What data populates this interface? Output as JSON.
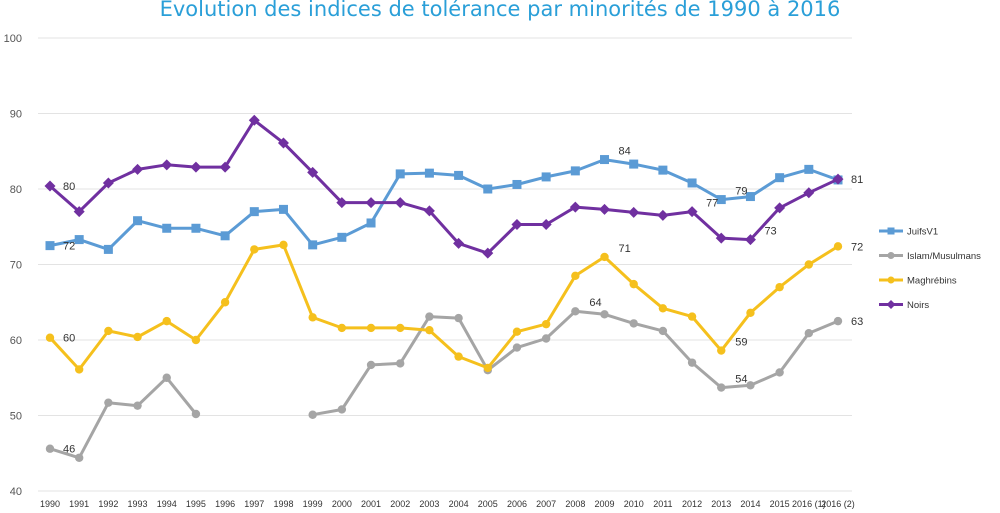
{
  "chart_data": {
    "type": "line",
    "title": "Evolution des indices de tolérance par minorités de 1990 à 2016",
    "xlabel": "",
    "ylabel": "",
    "ylim": [
      40,
      100
    ],
    "yticks": [
      40,
      50,
      60,
      70,
      80,
      90,
      100
    ],
    "grid": true,
    "legend_position": "right",
    "categories": [
      "1990",
      "1991",
      "1992",
      "1993",
      "1994",
      "1995",
      "1996",
      "1997",
      "1998",
      "1999",
      "2000",
      "2001",
      "2002",
      "2003",
      "2004",
      "2005",
      "2006",
      "2007",
      "2008",
      "2009",
      "2010",
      "2011",
      "2012",
      "2013",
      "2014",
      "2015",
      "2016 (1)",
      "2016 (2)"
    ],
    "series": [
      {
        "name": "JuifsV1",
        "color": "#5b9bd5",
        "marker": "square",
        "values": [
          72.5,
          73.3,
          72,
          75.8,
          74.8,
          74.8,
          73.8,
          77,
          77.3,
          72.6,
          73.6,
          75.5,
          82,
          82.1,
          81.8,
          80,
          80.6,
          81.6,
          82.4,
          83.9,
          83.3,
          82.5,
          80.8,
          78.6,
          79,
          81.5,
          82.6,
          81.2
        ],
        "labels": [
          {
            "index": 0,
            "text": "72"
          },
          {
            "index": 19,
            "text": "84"
          },
          {
            "index": 23,
            "text": "79"
          }
        ]
      },
      {
        "name": "Islam/Musulmans",
        "color": "#a5a5a5",
        "marker": "circle",
        "values": [
          45.6,
          44.4,
          51.7,
          51.3,
          55,
          50.2,
          null,
          null,
          null,
          50.1,
          50.8,
          56.7,
          56.9,
          63.1,
          62.9,
          56,
          59,
          60.2,
          63.8,
          63.4,
          62.2,
          61.2,
          57,
          53.7,
          54,
          55.7,
          60.9,
          62.5
        ],
        "labels": [
          {
            "index": 0,
            "text": "46"
          },
          {
            "index": 18,
            "text": "64"
          },
          {
            "index": 23,
            "text": "54"
          },
          {
            "index": 27,
            "text": "63"
          }
        ]
      },
      {
        "name": "Maghrébins",
        "color": "#f5c01d",
        "marker": "circle",
        "values": [
          60.3,
          56.1,
          61.2,
          60.4,
          62.5,
          60,
          65,
          72,
          72.6,
          63,
          61.6,
          61.6,
          61.6,
          61.3,
          57.8,
          56.3,
          61.1,
          62.1,
          68.5,
          71,
          67.4,
          64.2,
          63.1,
          58.6,
          63.6,
          67,
          70,
          72.4
        ],
        "labels": [
          {
            "index": 0,
            "text": "60"
          },
          {
            "index": 19,
            "text": "71"
          },
          {
            "index": 23,
            "text": "59"
          },
          {
            "index": 27,
            "text": "72"
          }
        ]
      },
      {
        "name": "Noirs",
        "color": "#7030a0",
        "marker": "diamond",
        "values": [
          80.4,
          77,
          80.8,
          82.6,
          83.2,
          82.9,
          82.9,
          89.1,
          86.1,
          82.2,
          78.2,
          78.2,
          78.2,
          77.1,
          72.8,
          71.5,
          75.3,
          75.3,
          77.6,
          77.3,
          76.9,
          76.5,
          77,
          73.5,
          73.3,
          77.5,
          79.5,
          81.3
        ],
        "labels": [
          {
            "index": 0,
            "text": "80"
          },
          {
            "index": 22,
            "text": "77"
          },
          {
            "index": 24,
            "text": "73"
          },
          {
            "index": 27,
            "text": "81"
          }
        ]
      }
    ]
  }
}
